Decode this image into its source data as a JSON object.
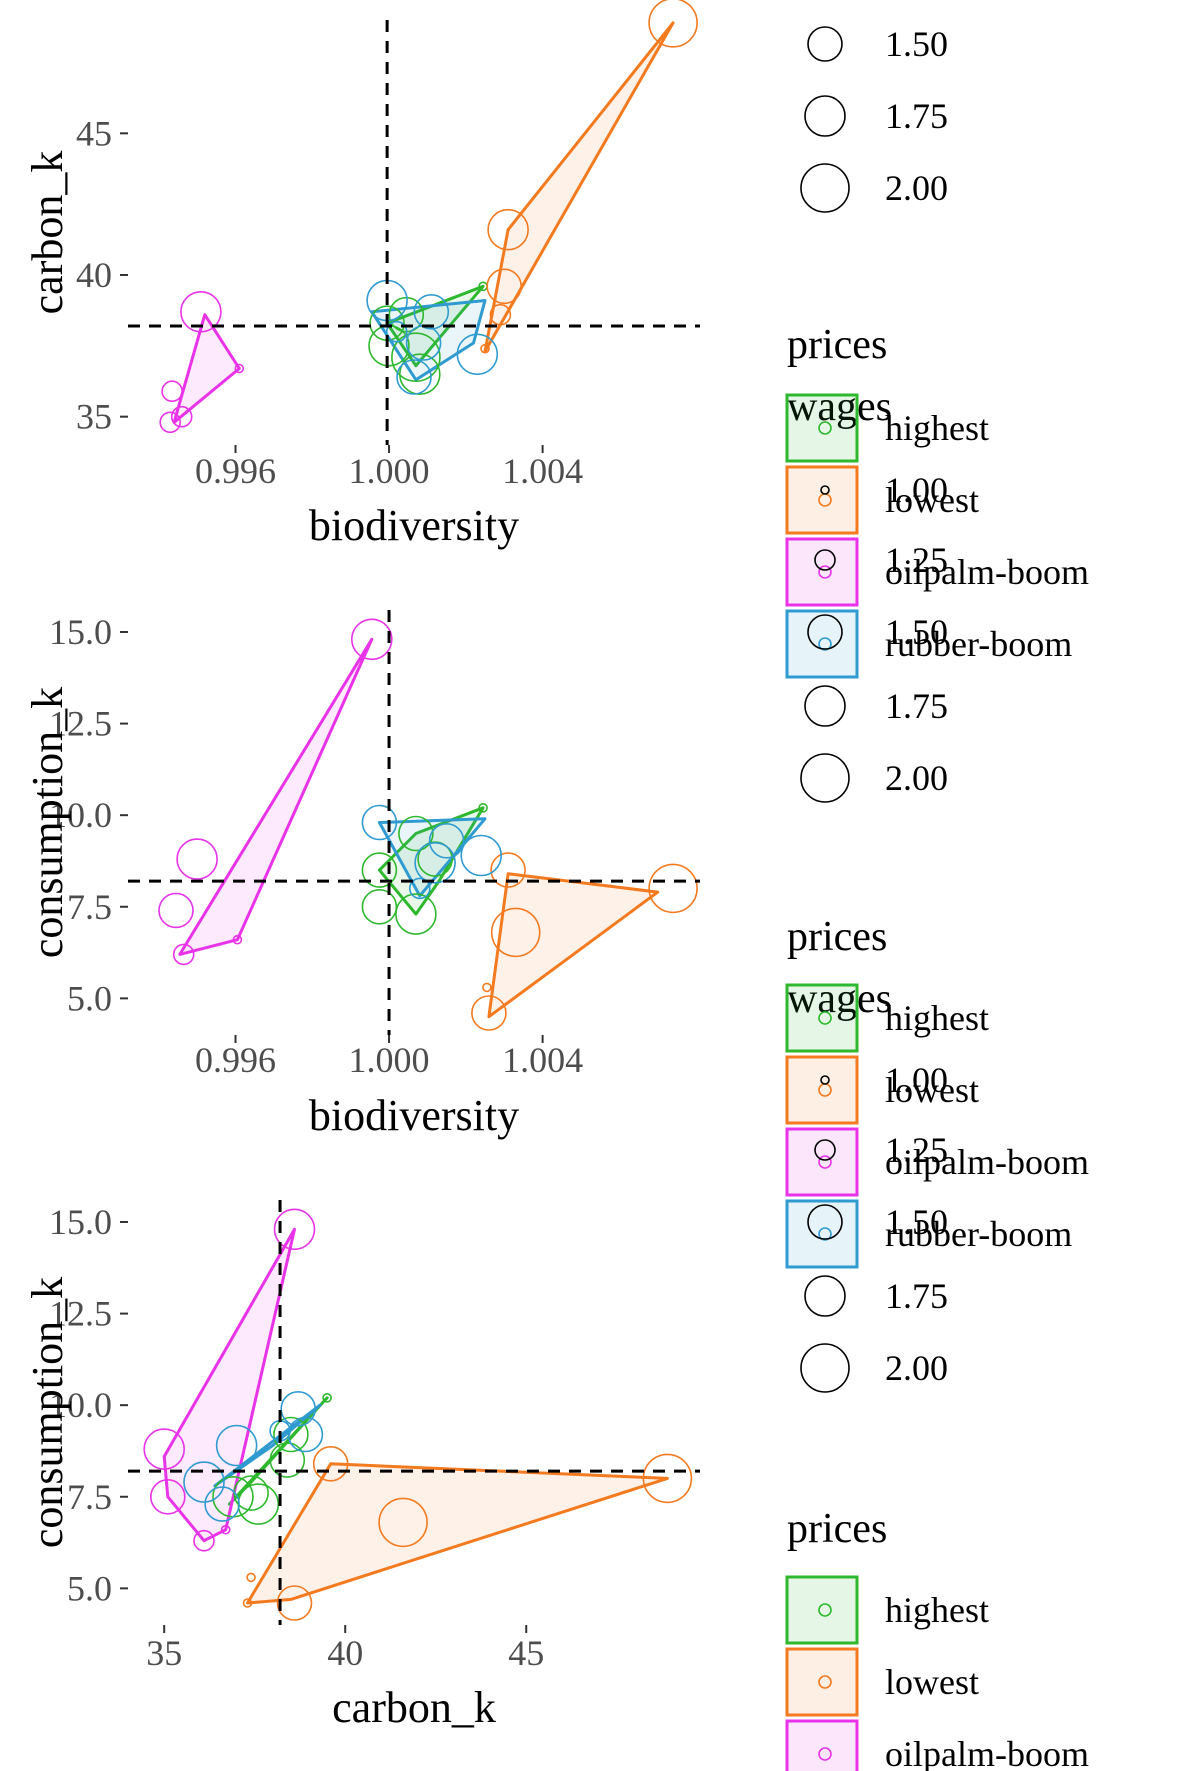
{
  "colors": {
    "highest": "#2EB82E",
    "lowest": "#F47A1F",
    "oilpalm-boom": "#E833E8",
    "rubber-boom": "#2F9BD0"
  },
  "legend": {
    "wages_title": "wages",
    "prices_title": "prices",
    "wages_levels": [
      "1.00",
      "1.25",
      "1.50",
      "1.75",
      "2.00"
    ],
    "price_levels": [
      "highest",
      "lowest",
      "oilpalm-boom",
      "rubber-boom"
    ]
  },
  "chart_data": [
    {
      "type": "scatter",
      "xlabel": "biodiversity",
      "ylabel": "carbon_k",
      "xticks": [
        "0.996",
        "1.000",
        "1.004"
      ],
      "yticks": [
        "35",
        "40",
        "45"
      ],
      "xlim": [
        0.9932,
        1.0081
      ],
      "ylim": [
        34.0,
        49.0
      ],
      "ref_lines": {
        "x": 0.99995,
        "y": 38.2
      },
      "groups": [
        {
          "name": "highest",
          "points": [
            [
              0.99995,
              38.3,
              1.5
            ],
            [
              1.0,
              37.5,
              1.75
            ],
            [
              1.00045,
              38.6,
              1.5
            ],
            [
              1.0008,
              36.5,
              1.75
            ],
            [
              1.0007,
              37.1,
              2.0
            ],
            [
              1.00245,
              39.6,
              1.0
            ]
          ],
          "hull": [
            [
              0.99995,
              38.3
            ],
            [
              1.00245,
              39.6
            ],
            [
              1.0007,
              36.8
            ]
          ]
        },
        {
          "name": "lowest",
          "points": [
            [
              1.0074,
              48.9,
              2.0
            ],
            [
              1.0031,
              41.6,
              1.75
            ],
            [
              1.003,
              39.6,
              1.5
            ],
            [
              1.0029,
              38.6,
              1.25
            ],
            [
              1.0025,
              37.4,
              1.0
            ]
          ],
          "hull": [
            [
              1.0025,
              37.3
            ],
            [
              1.0031,
              41.6
            ],
            [
              1.0074,
              48.9
            ]
          ]
        },
        {
          "name": "oilpalm-boom",
          "points": [
            [
              0.9951,
              38.7,
              1.75
            ],
            [
              0.9946,
              35.0,
              1.25
            ],
            [
              0.9943,
              34.8,
              1.25
            ],
            [
              0.99435,
              35.9,
              1.25
            ],
            [
              0.9961,
              36.7,
              1.0
            ]
          ],
          "hull": [
            [
              0.9944,
              34.8
            ],
            [
              0.9952,
              38.6
            ],
            [
              0.9961,
              36.7
            ]
          ]
        },
        {
          "name": "rubber-boom",
          "points": [
            [
              0.99995,
              39.1,
              1.75
            ],
            [
              1.0011,
              38.7,
              1.5
            ],
            [
              1.0009,
              37.6,
              1.5
            ],
            [
              1.0023,
              37.2,
              1.75
            ],
            [
              1.00065,
              36.4,
              1.5
            ],
            [
              1.0002,
              38.0,
              1.25
            ]
          ],
          "hull": [
            [
              0.99955,
              38.7
            ],
            [
              1.0025,
              39.1
            ],
            [
              1.0022,
              37.6
            ],
            [
              1.0007,
              36.3
            ]
          ]
        }
      ]
    },
    {
      "type": "scatter",
      "xlabel": "biodiversity",
      "ylabel": "consumption_k",
      "xticks": [
        "0.996",
        "1.000",
        "1.004"
      ],
      "yticks": [
        "5.0",
        "7.5",
        "10.0",
        "12.5",
        "15.0"
      ],
      "xlim": [
        0.9932,
        1.0081
      ],
      "ylim": [
        4.0,
        15.6
      ],
      "ref_lines": {
        "x": 1.0,
        "y": 8.2
      },
      "groups": [
        {
          "name": "highest",
          "points": [
            [
              0.99975,
              8.5,
              1.5
            ],
            [
              0.99975,
              7.5,
              1.5
            ],
            [
              1.0007,
              7.3,
              1.75
            ],
            [
              1.0012,
              8.8,
              1.5
            ],
            [
              1.0007,
              9.5,
              1.5
            ],
            [
              1.00245,
              10.2,
              1.0
            ]
          ],
          "hull": [
            [
              0.99975,
              8.5
            ],
            [
              1.0007,
              9.5
            ],
            [
              1.00245,
              10.2
            ],
            [
              1.0013,
              8.2
            ],
            [
              1.0007,
              7.3
            ]
          ]
        },
        {
          "name": "lowest",
          "points": [
            [
              1.0074,
              8.0,
              2.0
            ],
            [
              1.0031,
              8.5,
              1.5
            ],
            [
              1.0033,
              6.8,
              2.0
            ],
            [
              1.00255,
              5.3,
              1.0
            ],
            [
              1.0026,
              4.6,
              1.5
            ]
          ],
          "hull": [
            [
              1.0026,
              4.5
            ],
            [
              1.0031,
              8.4
            ],
            [
              1.007,
              7.9
            ]
          ]
        },
        {
          "name": "oilpalm-boom",
          "points": [
            [
              0.99955,
              14.8,
              1.75
            ],
            [
              0.995,
              8.8,
              1.75
            ],
            [
              0.99445,
              7.4,
              1.5
            ],
            [
              0.99465,
              6.2,
              1.25
            ],
            [
              0.99605,
              6.6,
              1.0
            ]
          ],
          "hull": [
            [
              0.99455,
              6.2
            ],
            [
              0.99955,
              14.8
            ],
            [
              0.99605,
              6.6
            ]
          ]
        },
        {
          "name": "rubber-boom",
          "points": [
            [
              0.99975,
              9.8,
              1.5
            ],
            [
              1.0012,
              8.7,
              1.75
            ],
            [
              1.0015,
              9.3,
              1.5
            ],
            [
              1.0024,
              8.9,
              1.75
            ],
            [
              1.0008,
              8.0,
              1.25
            ]
          ],
          "hull": [
            [
              0.99975,
              9.8
            ],
            [
              1.0025,
              9.9
            ],
            [
              1.0008,
              7.8
            ]
          ]
        }
      ]
    },
    {
      "type": "scatter",
      "xlabel": "carbon_k",
      "ylabel": "consumption_k",
      "xticks": [
        "35",
        "40",
        "45"
      ],
      "yticks": [
        "5.0",
        "7.5",
        "10.0",
        "12.5",
        "15.0"
      ],
      "xlim": [
        34.0,
        49.8
      ],
      "ylim": [
        4.0,
        15.6
      ],
      "ref_lines": {
        "x": 38.2,
        "y": 8.2
      },
      "groups": [
        {
          "name": "highest",
          "points": [
            [
              36.9,
              7.5,
              1.75
            ],
            [
              37.4,
              7.6,
              1.5
            ],
            [
              37.6,
              7.3,
              1.75
            ],
            [
              38.4,
              8.5,
              1.5
            ],
            [
              38.5,
              9.2,
              1.5
            ],
            [
              39.5,
              10.2,
              1.0
            ]
          ],
          "hull": [
            [
              36.8,
              7.3
            ],
            [
              39.5,
              10.2
            ],
            [
              37.4,
              7.9
            ]
          ]
        },
        {
          "name": "lowest",
          "points": [
            [
              48.9,
              8.0,
              2.0
            ],
            [
              41.6,
              6.8,
              2.0
            ],
            [
              39.6,
              8.4,
              1.5
            ],
            [
              38.6,
              4.6,
              1.5
            ],
            [
              37.4,
              5.3,
              1.0
            ],
            [
              37.3,
              4.6,
              1.0
            ]
          ],
          "hull": [
            [
              37.3,
              4.6
            ],
            [
              39.6,
              8.4
            ],
            [
              48.9,
              8.0
            ],
            [
              38.5,
              4.7
            ]
          ]
        },
        {
          "name": "oilpalm-boom",
          "points": [
            [
              38.6,
              14.8,
              1.75
            ],
            [
              35.0,
              8.8,
              1.75
            ],
            [
              35.1,
              7.5,
              1.5
            ],
            [
              36.1,
              6.3,
              1.25
            ],
            [
              36.7,
              6.6,
              1.0
            ]
          ],
          "hull": [
            [
              35.0,
              8.6
            ],
            [
              38.6,
              14.8
            ],
            [
              36.7,
              6.6
            ],
            [
              36.1,
              6.3
            ],
            [
              35.1,
              7.5
            ]
          ]
        },
        {
          "name": "rubber-boom",
          "points": [
            [
              36.1,
              7.9,
              1.75
            ],
            [
              36.6,
              7.3,
              1.5
            ],
            [
              37.0,
              8.9,
              1.75
            ],
            [
              38.7,
              9.9,
              1.5
            ],
            [
              38.9,
              9.2,
              1.5
            ],
            [
              38.2,
              9.3,
              1.25
            ]
          ],
          "hull": [
            [
              36.4,
              7.8
            ],
            [
              39.3,
              10.0
            ],
            [
              38.0,
              8.9
            ]
          ]
        }
      ]
    }
  ]
}
